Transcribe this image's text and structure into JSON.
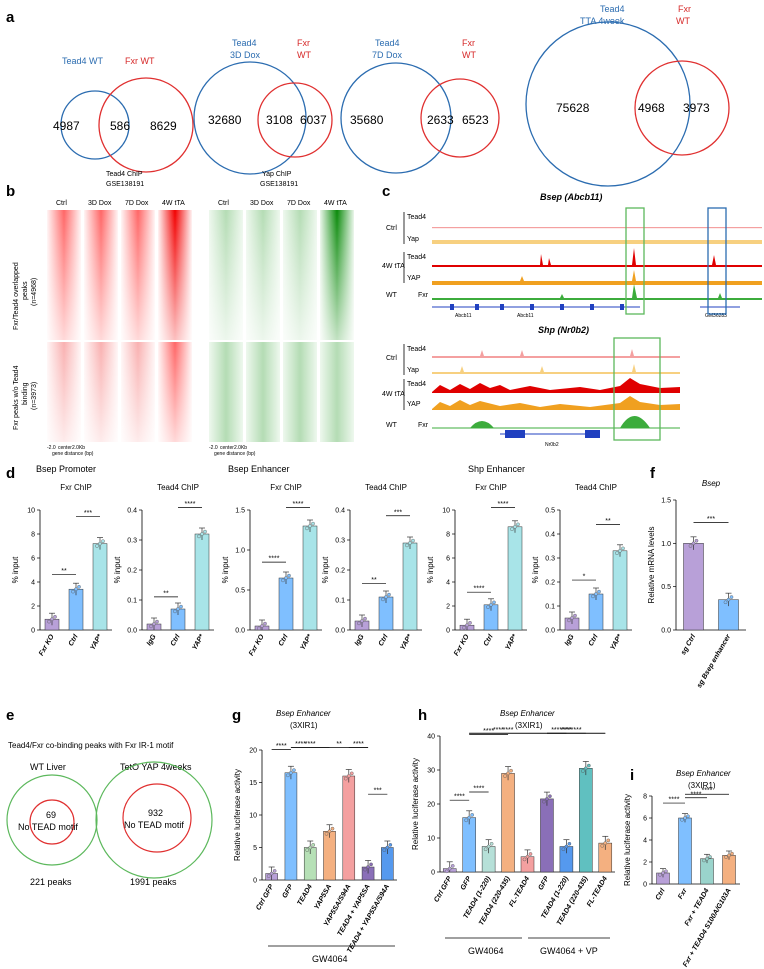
{
  "colors": {
    "blue": "#2b6cb0",
    "red": "#e03030",
    "green": "#3cac3c",
    "chip_red": "#e00000",
    "chip_orange": "#f0a020",
    "chip_yellow": "#f7d080",
    "chip_pink": "#f4a0a0",
    "bar_purple": "#b8a0d8",
    "bar_blue": "#7fbfff",
    "bar_cyan": "#a8e4e8",
    "bar_orange": "#f4b080",
    "bar_dkpurple": "#8a6fb8",
    "bar_green": "#b6e0d8"
  },
  "panel_a": {
    "label": "a",
    "venns": [
      {
        "left_title": [
          "Tead4 WT"
        ],
        "right_title": [
          "Fxr WT"
        ],
        "left_only": "4987",
        "overlap": "586",
        "right_only": "8629"
      },
      {
        "left_title": [
          "Tead4",
          "3D Dox"
        ],
        "right_title": [
          "Fxr",
          "WT"
        ],
        "left_only": "32680",
        "overlap": "3108",
        "right_only": "6037"
      },
      {
        "left_title": [
          "Tead4",
          "7D Dox"
        ],
        "right_title": [
          "Fxr",
          "WT"
        ],
        "left_only": "35680",
        "overlap": "2633",
        "right_only": "6523"
      },
      {
        "left_title": [
          "Tead4",
          "TTA 4week"
        ],
        "right_title": [
          "Fxr",
          "WT"
        ],
        "left_only": "75628",
        "overlap": "4968",
        "right_only": "3973"
      }
    ]
  },
  "panel_b": {
    "label": "b",
    "tead4_title": [
      "Tead4 ChIP",
      "GSE138191"
    ],
    "yap_title": [
      "Yap ChIP",
      "GSE138191"
    ],
    "columns": [
      "Ctrl",
      "3D Dox",
      "7D Dox",
      "4W tTA"
    ],
    "row_labels": [
      [
        "Fxr/Tead4 overlapped",
        "peaks",
        "(n=4968)"
      ],
      [
        "Fxr peaks w/o Tead4",
        "binding",
        "(n=3973)"
      ]
    ],
    "axis_ticks": [
      "-2.0",
      "center",
      "2.0Kb"
    ],
    "axis_caption": "gene distance (bp)"
  },
  "panel_c": {
    "label": "c",
    "gene1": "Bsep (Abcb11)",
    "gene2": "Shp (Nr0b2)",
    "groups1": [
      {
        "group": "Ctrl",
        "tracks": [
          "Tead4",
          "Yap"
        ]
      },
      {
        "group": "4W tTA",
        "tracks": [
          "Tead4",
          "YAP"
        ]
      },
      {
        "group": "WT",
        "tracks": [
          "Fxr"
        ]
      }
    ],
    "groups2": [
      {
        "group": "Ctrl",
        "tracks": [
          "Tead4",
          "Yap"
        ]
      },
      {
        "group": "4W tTA",
        "tracks": [
          "Tead4",
          "YAP"
        ]
      },
      {
        "group": "WT",
        "tracks": [
          "Fxr"
        ]
      }
    ],
    "gene_labels1": [
      "Abcb11",
      "Abcb11",
      "GM36283"
    ],
    "gene_labels2": [
      "Nr0b2"
    ]
  },
  "panel_d": {
    "label": "d",
    "sections": [
      "Bsep Promoter",
      "Bsep Enhancer",
      "Shp Enhancer"
    ],
    "ylabel": "% input"
  },
  "panel_e": {
    "label": "e",
    "title": "Tead4/Fxr co-binding peaks with Fxr IR-1 motif",
    "venns": [
      {
        "title": "WT Liver",
        "inner": "69",
        "motif": "No TEAD motif",
        "total": "221 peaks"
      },
      {
        "title": "TetO YAP 4weeks",
        "inner": "932",
        "motif": "No TEAD motif",
        "total": "1991 peaks"
      }
    ]
  },
  "panel_f": {
    "label": "f",
    "title": "Bsep",
    "ylabel": "Relative mRNA levels",
    "sig": "***"
  },
  "panel_g": {
    "label": "g",
    "title": [
      "Bsep Enhancer",
      "(3XIR1)"
    ],
    "ylabel": "Relative luciferase activity",
    "treatment": "GW4064"
  },
  "panel_h": {
    "label": "h",
    "title": [
      "Bsep Enhancer",
      "(3XIR1)"
    ],
    "ylabel": "Relative luciferase activity",
    "treatment1": "GW4064",
    "treatment2": "GW4064 + VP"
  },
  "panel_i": {
    "label": "i",
    "title": [
      "Bsep Enhancer",
      "(3XIR1)"
    ],
    "ylabel": "Relative luciferase activity"
  },
  "chart_data": [
    {
      "id": "d1",
      "type": "bar",
      "title": "Fxr ChIP",
      "section": "Bsep Promoter",
      "categories": [
        "Fxr KO",
        "Ctrl",
        "YAP*"
      ],
      "values": [
        0.9,
        3.4,
        7.2
      ],
      "ylim": [
        0,
        10
      ],
      "yticks": [
        0,
        2,
        4,
        6,
        8,
        10
      ],
      "ylabel": "% input",
      "sig": [
        {
          "a": 0,
          "b": 1,
          "s": "**"
        },
        {
          "a": 1,
          "b": 2,
          "s": "***"
        }
      ]
    },
    {
      "id": "d2",
      "type": "bar",
      "title": "Tead4 ChIP",
      "section": "Bsep Promoter",
      "categories": [
        "IgG",
        "Ctrl",
        "YAP*"
      ],
      "values": [
        0.02,
        0.07,
        0.32
      ],
      "ylim": [
        0,
        0.4
      ],
      "yticks": [
        0.0,
        0.1,
        0.2,
        0.3,
        0.4
      ],
      "ylabel": "% input",
      "sig": [
        {
          "a": 0,
          "b": 1,
          "s": "**"
        },
        {
          "a": 1,
          "b": 2,
          "s": "****"
        }
      ]
    },
    {
      "id": "d3",
      "type": "bar",
      "title": "Fxr ChIP",
      "section": "Bsep Enhancer",
      "categories": [
        "Fxr KO",
        "Ctrl",
        "YAP*"
      ],
      "values": [
        0.05,
        0.65,
        1.3
      ],
      "ylim": [
        0,
        1.5
      ],
      "yticks": [
        0.0,
        0.5,
        1.0,
        1.5
      ],
      "ylabel": "% input",
      "sig": [
        {
          "a": 0,
          "b": 1,
          "s": "****"
        },
        {
          "a": 1,
          "b": 2,
          "s": "****"
        }
      ]
    },
    {
      "id": "d4",
      "type": "bar",
      "title": "Tead4 ChIP",
      "section": "Bsep Enhancer",
      "categories": [
        "IgG",
        "Ctrl",
        "YAP*"
      ],
      "values": [
        0.03,
        0.11,
        0.29
      ],
      "ylim": [
        0,
        0.4
      ],
      "yticks": [
        0.0,
        0.1,
        0.2,
        0.3,
        0.4
      ],
      "ylabel": "% input",
      "sig": [
        {
          "a": 0,
          "b": 1,
          "s": "**"
        },
        {
          "a": 1,
          "b": 2,
          "s": "***"
        }
      ]
    },
    {
      "id": "d5",
      "type": "bar",
      "title": "Fxr ChIP",
      "section": "Shp Enhancer",
      "categories": [
        "Fxr KO",
        "Ctrl",
        "YAP*"
      ],
      "values": [
        0.4,
        2.1,
        8.6
      ],
      "ylim": [
        0,
        10
      ],
      "yticks": [
        0,
        2,
        4,
        6,
        8,
        10
      ],
      "ylabel": "% input",
      "sig": [
        {
          "a": 0,
          "b": 1,
          "s": "****"
        },
        {
          "a": 1,
          "b": 2,
          "s": "****"
        }
      ]
    },
    {
      "id": "d6",
      "type": "bar",
      "title": "Tead4 ChIP",
      "section": "Shp Enhancer",
      "categories": [
        "IgG",
        "Ctrl",
        "YAP*"
      ],
      "values": [
        0.05,
        0.15,
        0.33
      ],
      "ylim": [
        0,
        0.5
      ],
      "yticks": [
        0.0,
        0.1,
        0.2,
        0.3,
        0.4,
        0.5
      ],
      "ylabel": "% input",
      "sig": [
        {
          "a": 0,
          "b": 1,
          "s": "*"
        },
        {
          "a": 1,
          "b": 2,
          "s": "**"
        }
      ]
    },
    {
      "id": "f",
      "type": "bar",
      "title": "Bsep",
      "categories": [
        "sg Ctrl",
        "sg Bsep enhancer"
      ],
      "values": [
        1.0,
        0.35
      ],
      "ylim": [
        0,
        1.5
      ],
      "yticks": [
        0.0,
        0.5,
        1.0,
        1.5
      ],
      "ylabel": "Relative mRNA levels",
      "sig": [
        {
          "a": 0,
          "b": 1,
          "s": "***"
        }
      ]
    },
    {
      "id": "g",
      "type": "bar",
      "title": "Bsep Enhancer (3XIR1)",
      "categories": [
        "Ctrl GFP",
        "GFP",
        "TEAD4",
        "YAP5SA",
        "YAP5SA/S94A",
        "TEAD4 + YAP5SA",
        "TEAD4 + YAP5SA/S94A"
      ],
      "values": [
        1.0,
        16.5,
        5.0,
        7.5,
        16.0,
        2.0,
        5.0
      ],
      "ylim": [
        0,
        20
      ],
      "yticks": [
        0,
        5,
        10,
        15,
        20
      ],
      "ylabel": "Relative luciferase activity",
      "sig": [
        {
          "a": 0,
          "b": 1,
          "s": "****"
        },
        {
          "a": 1,
          "b": 2,
          "s": "****"
        },
        {
          "a": 1,
          "b": 3,
          "s": "****"
        },
        {
          "a": 2,
          "b": 5,
          "s": "**"
        },
        {
          "a": 4,
          "b": 5,
          "s": "****"
        },
        {
          "a": 5,
          "b": 6,
          "s": "***"
        }
      ]
    },
    {
      "id": "h",
      "type": "bar",
      "title": "Bsep Enhancer (3XIR1)",
      "categories": [
        "Ctrl GFP",
        "GFP",
        "TEAD4 (1-220)",
        "TEAD4 (220-435)",
        "FL-TEAD4",
        "GFP",
        "TEAD4 (1-220)",
        "TEAD4 (220-435)",
        "FL-TEAD4"
      ],
      "values": [
        1.0,
        16.0,
        7.5,
        29.0,
        4.5,
        21.5,
        7.5,
        30.5,
        8.5
      ],
      "ylim": [
        0,
        40
      ],
      "yticks": [
        0,
        10,
        20,
        30,
        40
      ],
      "ylabel": "Relative luciferase activity",
      "sig": [
        {
          "a": 0,
          "b": 1,
          "s": "****"
        },
        {
          "a": 1,
          "b": 2,
          "s": "****"
        },
        {
          "a": 1,
          "b": 3,
          "s": "****"
        },
        {
          "a": 1,
          "b": 4,
          "s": "****"
        },
        {
          "a": 1,
          "b": 5,
          "s": "****"
        },
        {
          "a": 4,
          "b": 8,
          "s": "***"
        },
        {
          "a": 5,
          "b": 6,
          "s": "****"
        },
        {
          "a": 5,
          "b": 7,
          "s": "****"
        },
        {
          "a": 5,
          "b": 8,
          "s": "****"
        }
      ]
    },
    {
      "id": "i",
      "type": "bar",
      "title": "Bsep Enhancer (3XIR1)",
      "categories": [
        "Ctrl",
        "Fxr",
        "Fxr + TEAD4",
        "Fxr + TEAD4 S100A/G103A"
      ],
      "values": [
        1.0,
        6.0,
        2.3,
        2.6
      ],
      "ylim": [
        0,
        8
      ],
      "yticks": [
        0,
        2,
        4,
        6,
        8
      ],
      "ylabel": "Relative luciferase activity",
      "sig": [
        {
          "a": 0,
          "b": 1,
          "s": "****"
        },
        {
          "a": 1,
          "b": 2,
          "s": "****"
        },
        {
          "a": 1,
          "b": 3,
          "s": "****"
        }
      ]
    }
  ]
}
